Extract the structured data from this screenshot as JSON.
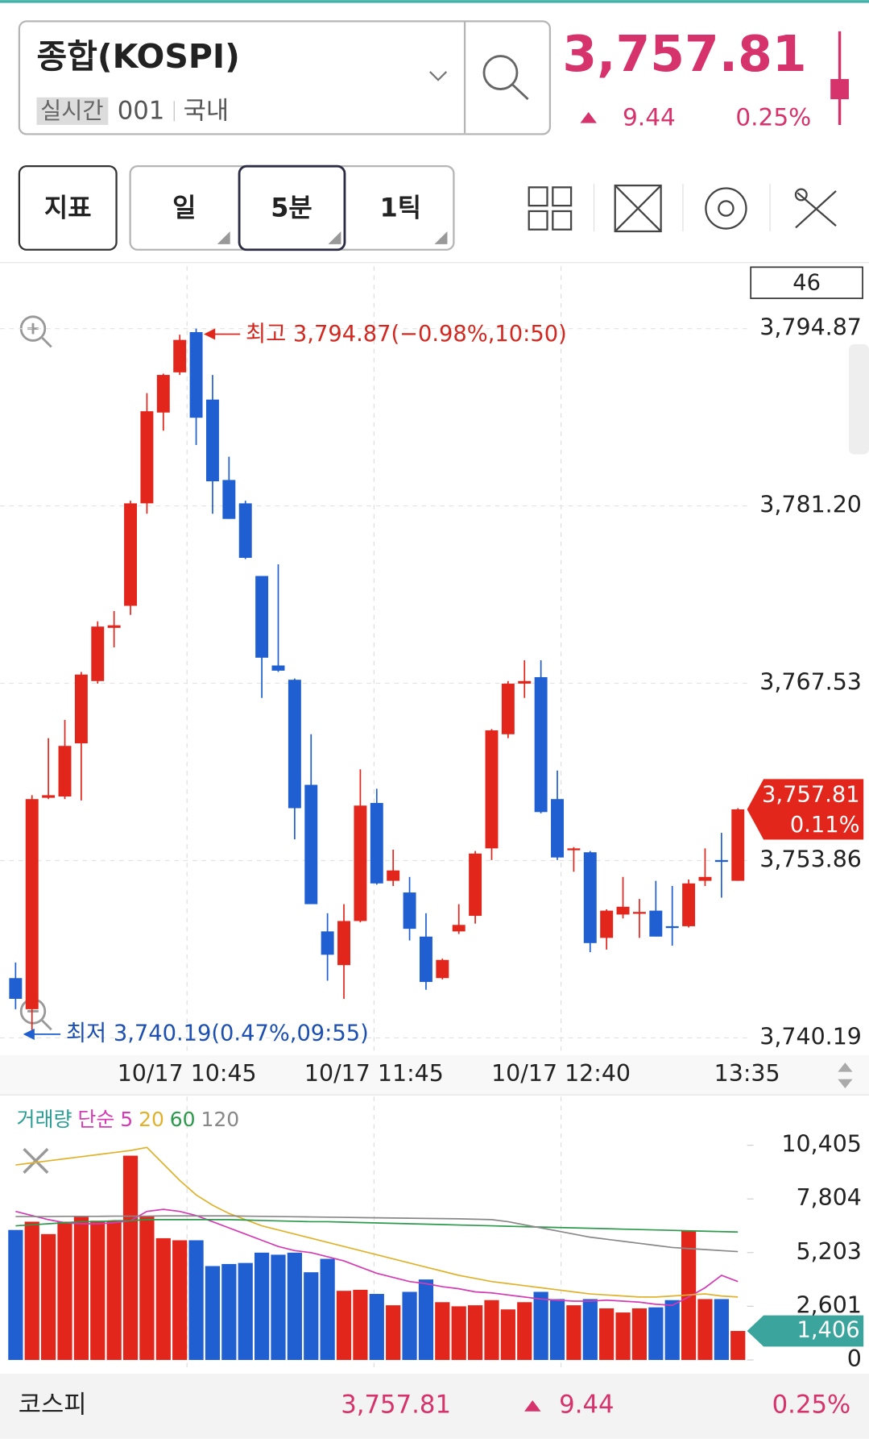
{
  "header": {
    "name": "종합(KOSPI)",
    "badge": "실시간",
    "code": "001",
    "market": "국내",
    "price": "3,757.81",
    "change": "9.44",
    "change_pct": "0.25%"
  },
  "toolbar": {
    "indicator": "지표",
    "periods": [
      "일",
      "5분",
      "1틱"
    ]
  },
  "chart_data": {
    "type": "candlestick",
    "timer": 46,
    "up_color": "#e3261c",
    "down_color": "#1f5fd1",
    "high_label": "최고 3,794.87(−0.98%,10:50)",
    "low_label": "최저 3,740.19(0.47%,09:55)",
    "x_labels": [
      "10/17 10:45",
      "10/17 11:45",
      "10/17 12:40",
      "13:35"
    ],
    "ylim": [
      3740.19,
      3794.87
    ],
    "yticks": [
      {
        "value": 3794.87,
        "label": "3,794.87"
      },
      {
        "value": 3781.2,
        "label": "3,781.20"
      },
      {
        "value": 3767.53,
        "label": "3,767.53"
      },
      {
        "value": 3753.86,
        "label": "3,753.86"
      },
      {
        "value": 3740.19,
        "label": "3,740.19"
      }
    ],
    "current": {
      "value": 3757.81,
      "label": "3,757.81"
    },
    "current_change": "0.11%",
    "open": [
      3744.8,
      3742.4,
      3758.7,
      3758.8,
      3762.9,
      3767.7,
      3771.8,
      3773.5,
      3781.4,
      3788.4,
      3791.5,
      3794.6,
      3789.4,
      3783.2,
      3781.4,
      3775.8,
      3768.9,
      3767.8,
      3759.7,
      3748.4,
      3745.8,
      3749.2,
      3758.3,
      3752.3,
      3751.4,
      3748.0,
      3744.8,
      3748.4,
      3749.6,
      3754.8,
      3763.6,
      3767.5,
      3768.0,
      3758.6,
      3754.7,
      3754.5,
      3747.9,
      3749.7,
      3749.8,
      3750.0,
      3748.8,
      3748.8,
      3752.3,
      3753.9,
      3752.3
    ],
    "high": [
      3746.0,
      3758.9,
      3763.3,
      3764.7,
      3768.4,
      3772.3,
      3773.1,
      3781.6,
      3789.9,
      3791.4,
      3794.4,
      3794.87,
      3791.3,
      3785.0,
      3781.6,
      3775.8,
      3776.7,
      3767.9,
      3763.6,
      3749.8,
      3750.5,
      3760.9,
      3759.4,
      3754.7,
      3752.6,
      3749.8,
      3746.3,
      3750.5,
      3754.6,
      3764.0,
      3767.7,
      3769.3,
      3769.3,
      3760.8,
      3754.9,
      3754.6,
      3750.1,
      3752.6,
      3750.9,
      3752.3,
      3751.9,
      3752.4,
      3754.8,
      3756.0,
      3757.9
    ],
    "low": [
      3742.4,
      3740.19,
      3758.6,
      3758.6,
      3758.5,
      3767.5,
      3770.3,
      3772.8,
      3780.6,
      3787.0,
      3791.3,
      3785.9,
      3780.6,
      3780.2,
      3777.1,
      3766.4,
      3768.4,
      3755.5,
      3750.5,
      3744.6,
      3743.2,
      3749.1,
      3752.0,
      3751.9,
      3747.7,
      3743.9,
      3744.7,
      3748.2,
      3749.0,
      3753.9,
      3763.3,
      3766.4,
      3757.5,
      3753.9,
      3753.0,
      3746.8,
      3747.0,
      3749.4,
      3747.9,
      3748.0,
      3747.3,
      3748.7,
      3751.9,
      3751.0,
      3752.3
    ],
    "close": [
      3743.2,
      3758.6,
      3758.9,
      3762.7,
      3768.2,
      3771.9,
      3772.0,
      3781.4,
      3788.5,
      3791.3,
      3794.0,
      3788.0,
      3783.1,
      3780.2,
      3777.2,
      3769.5,
      3768.5,
      3757.9,
      3750.5,
      3746.6,
      3749.2,
      3758.1,
      3752.1,
      3753.1,
      3748.6,
      3744.5,
      3746.2,
      3748.9,
      3754.4,
      3763.9,
      3767.5,
      3767.7,
      3757.6,
      3754.1,
      3754.8,
      3747.5,
      3750.0,
      3750.3,
      3749.9,
      3748.0,
      3748.7,
      3752.1,
      3752.6,
      3753.8,
      3757.81
    ],
    "volume": {
      "title": "거래량",
      "method": "단순",
      "ylim": [
        0,
        10405
      ],
      "yticks": [
        {
          "value": 10405,
          "label": "10,405"
        },
        {
          "value": 7804,
          "label": "7,804"
        },
        {
          "value": 5203,
          "label": "5,203"
        },
        {
          "value": 2601,
          "label": "2,601"
        },
        0
      ],
      "current": {
        "value": 1406,
        "label": "1,406"
      },
      "values": [
        6300,
        6700,
        6100,
        6700,
        6950,
        6750,
        6750,
        9900,
        6950,
        5900,
        5800,
        5800,
        4550,
        4650,
        4700,
        5200,
        5100,
        5200,
        4250,
        4900,
        3350,
        3400,
        3200,
        2650,
        3300,
        3900,
        2800,
        2600,
        2650,
        2900,
        2450,
        2800,
        3300,
        2950,
        2650,
        2950,
        2500,
        2300,
        2500,
        2550,
        2900,
        6250,
        2950,
        2950,
        1406
      ],
      "series": [
        {
          "name": "5",
          "color": "#d43bb4",
          "values": [
            7200,
            7000,
            6800,
            6650,
            6600,
            6600,
            6650,
            6750,
            7200,
            7300,
            7200,
            7000,
            6700,
            6400,
            6100,
            5800,
            5500,
            5300,
            5200,
            5000,
            4800,
            4500,
            4200,
            4000,
            3800,
            3700,
            3550,
            3450,
            3300,
            3250,
            3150,
            3050,
            2950,
            2900,
            2850,
            2850,
            2900,
            2850,
            2800,
            2700,
            2650,
            3050,
            3500,
            4100,
            3800
          ]
        },
        {
          "name": "20",
          "color": "#e0b22c",
          "values": [
            9450,
            9550,
            9650,
            9750,
            9850,
            9950,
            10050,
            10150,
            10300,
            9500,
            8700,
            8000,
            7500,
            7100,
            6800,
            6500,
            6300,
            6100,
            5900,
            5700,
            5500,
            5300,
            5100,
            4900,
            4700,
            4500,
            4300,
            4100,
            3950,
            3800,
            3700,
            3600,
            3500,
            3400,
            3300,
            3200,
            3150,
            3100,
            3050,
            3050,
            3100,
            3150,
            3200,
            3100,
            3050
          ]
        },
        {
          "name": "60",
          "color": "#2b9a4b",
          "values": [
            6500,
            6550,
            6600,
            6650,
            6700,
            6700,
            6750,
            6750,
            6800,
            6800,
            6800,
            6800,
            6800,
            6800,
            6780,
            6760,
            6740,
            6720,
            6700,
            6700,
            6680,
            6660,
            6640,
            6620,
            6600,
            6580,
            6560,
            6540,
            6520,
            6500,
            6480,
            6460,
            6440,
            6420,
            6400,
            6380,
            6360,
            6340,
            6320,
            6300,
            6280,
            6260,
            6240,
            6220,
            6200
          ]
        },
        {
          "name": "120",
          "color": "#888888",
          "values": [
            6950,
            6950,
            6950,
            6960,
            6960,
            6960,
            6970,
            6970,
            6970,
            6980,
            6980,
            6980,
            6980,
            6980,
            6970,
            6960,
            6950,
            6940,
            6930,
            6920,
            6910,
            6900,
            6890,
            6880,
            6870,
            6860,
            6850,
            6840,
            6820,
            6800,
            6700,
            6550,
            6400,
            6250,
            6100,
            5950,
            5850,
            5750,
            5650,
            5550,
            5450,
            5400,
            5350,
            5300,
            5250
          ]
        }
      ]
    }
  },
  "footer": {
    "name": "코스피",
    "price": "3,757.81",
    "change": "9.44",
    "change_pct": "0.25%"
  }
}
